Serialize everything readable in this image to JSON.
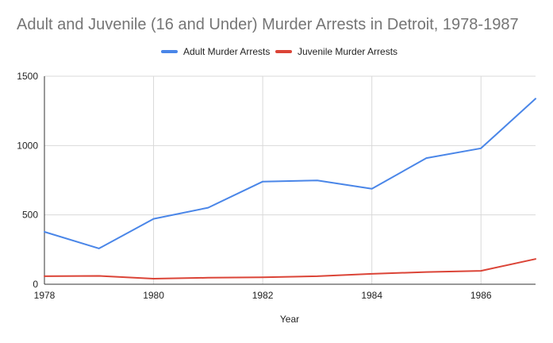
{
  "chart_data": {
    "type": "line",
    "title": "Adult and Juvenile (16 and Under) Murder Arrests in Detroit, 1978-1987",
    "xlabel": "Year",
    "ylabel": "",
    "x": [
      1978,
      1979,
      1980,
      1981,
      1982,
      1983,
      1984,
      1985,
      1986,
      1987
    ],
    "xlim": [
      1978,
      1987
    ],
    "ylim": [
      0,
      1500
    ],
    "x_ticks": [
      "1978",
      "1980",
      "1982",
      "1984",
      "1986"
    ],
    "y_ticks": [
      "0",
      "500",
      "1000",
      "1500"
    ],
    "grid": true,
    "legend_position": "top-center",
    "series": [
      {
        "name": "Adult Murder Arrests",
        "color": "#4a86e8",
        "values": [
          378,
          258,
          472,
          552,
          740,
          748,
          688,
          910,
          980,
          1338
        ]
      },
      {
        "name": "Juvenile Murder Arrests",
        "color": "#db4437",
        "values": [
          58,
          60,
          40,
          47,
          50,
          58,
          75,
          88,
          97,
          182
        ]
      }
    ]
  }
}
